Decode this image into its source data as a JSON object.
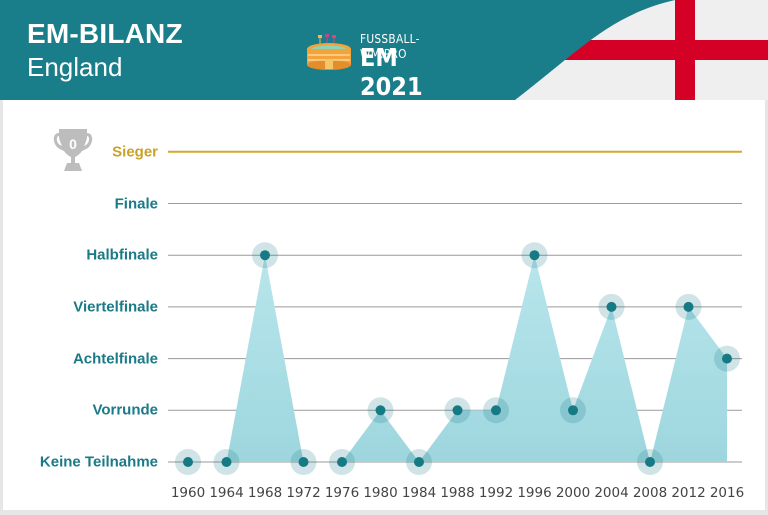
{
  "header": {
    "title": "EM-BILANZ",
    "subtitle": "England",
    "logo": {
      "icon": "stadium-icon",
      "site": "FUSSBALL-WM.PRO",
      "event": "EM 2021"
    },
    "flag": "england-flag",
    "colors": {
      "teal": "#1a7d8a",
      "flag_red": "#d50026",
      "flag_white": "#efefef"
    }
  },
  "trophy": {
    "icon": "trophy-icon",
    "count": "0"
  },
  "chart_data": {
    "type": "area",
    "title": "EM-BILANZ England",
    "xlabel": "",
    "ylabel": "",
    "categories": [
      "1960",
      "1964",
      "1968",
      "1972",
      "1976",
      "1980",
      "1984",
      "1988",
      "1992",
      "1996",
      "2000",
      "2004",
      "2008",
      "2012",
      "2016"
    ],
    "levels": [
      "Keine Teilnahme",
      "Vorrunde",
      "Achtelfinale",
      "Viertelfinale",
      "Halbfinale",
      "Finale",
      "Sieger"
    ],
    "values": [
      0,
      0,
      4,
      0,
      0,
      1,
      0,
      1,
      1,
      4,
      1,
      3,
      0,
      3,
      2
    ],
    "value_labels": [
      "Keine Teilnahme",
      "Keine Teilnahme",
      "Halbfinale",
      "Keine Teilnahme",
      "Keine Teilnahme",
      "Vorrunde",
      "Keine Teilnahme",
      "Vorrunde",
      "Vorrunde",
      "Halbfinale",
      "Vorrunde",
      "Viertelfinale",
      "Keine Teilnahme",
      "Viertelfinale",
      "Achtelfinale"
    ],
    "ylim": [
      0,
      6
    ],
    "grid": true,
    "colors": {
      "fill": "#a6dde3",
      "point": "#167a85",
      "halo": "#b9e2e7",
      "grid": "#9a9a9a",
      "winner_line": "#d4a82a",
      "label": "#1a7a87",
      "winner_label": "#c9a227"
    }
  }
}
